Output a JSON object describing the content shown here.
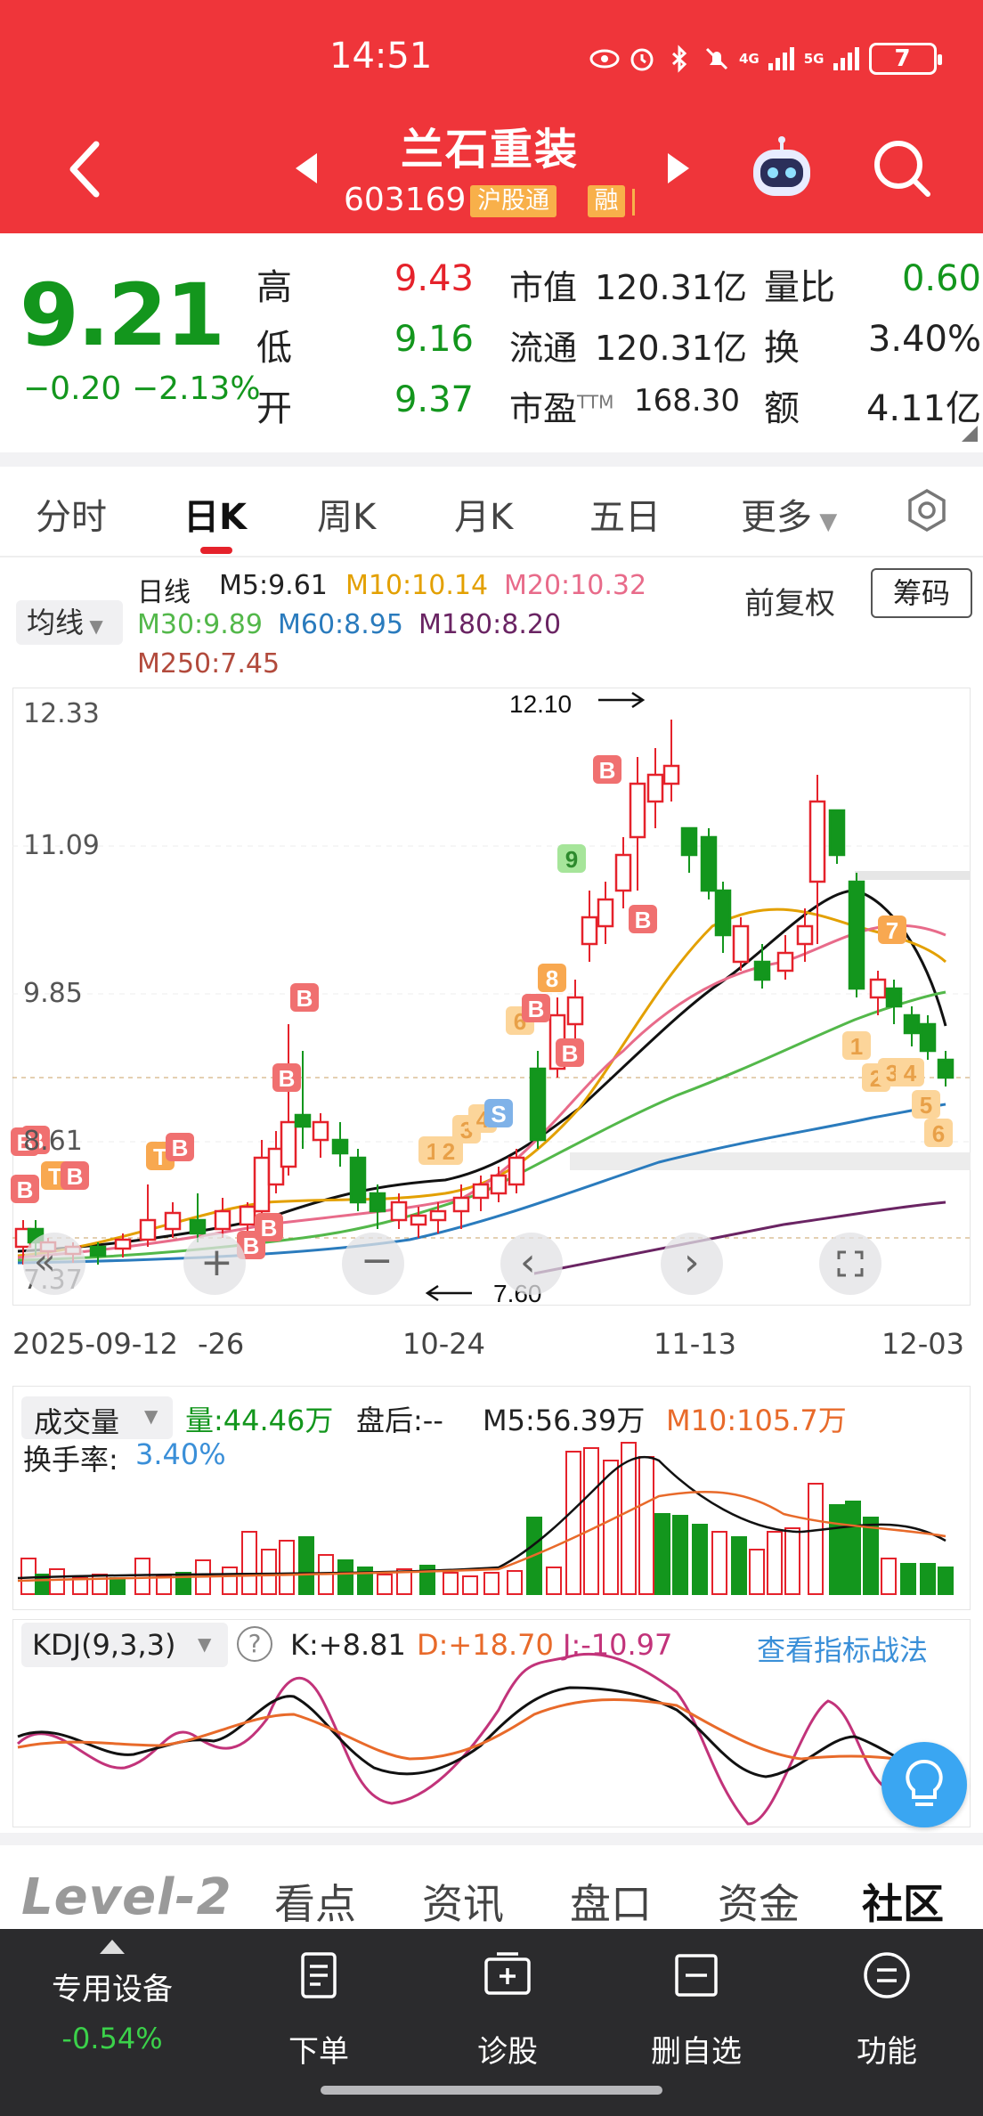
{
  "status_bar": {
    "time": "14:51",
    "signal_4g": "4G",
    "signal_5g": "5G",
    "battery": "7"
  },
  "header": {
    "name": "兰石重装",
    "code": "603169",
    "tag_hgt": "沪股通",
    "tag_rong": "融"
  },
  "quote": {
    "price": "9.21",
    "change": "−0.20",
    "change_pct": "−2.13%",
    "high_label": "高",
    "high": "9.43",
    "low_label": "低",
    "low": "9.16",
    "open_label": "开",
    "open": "9.37",
    "mcap_label": "市值",
    "mcap": "120.31亿",
    "float_label": "流通",
    "float": "120.31亿",
    "pe_label": "市盈",
    "pe_suffix": "TTM",
    "pe": "168.30",
    "vr_label": "量比",
    "vr": "0.60",
    "turnover_label": "换",
    "turnover": "3.40%",
    "amount_label": "额",
    "amount": "4.11亿"
  },
  "tabs": [
    "分时",
    "日K",
    "周K",
    "月K",
    "五日",
    "更多"
  ],
  "ma_legend": {
    "select": "均线",
    "kind": "日线",
    "m5": "M5:9.61",
    "m10": "M10:10.14",
    "m20": "M20:10.32",
    "m30": "M30:9.89",
    "m60": "M60:8.95",
    "m180": "M180:8.20",
    "m250": "M250:7.45",
    "qfq": "前复权",
    "chouma": "筹码"
  },
  "price_axis": [
    "12.33",
    "11.09",
    "9.85",
    "8.61",
    "7.37"
  ],
  "high_mark": "12.10",
  "low_mark": "7.60",
  "dates": [
    "2025-09-12",
    "-26",
    "10-24",
    "11-13",
    "12-03"
  ],
  "volume": {
    "select": "成交量",
    "vol": "量:44.46万",
    "after": "盘后:--",
    "m5": "M5:56.39万",
    "m10": "M10:105.7万",
    "turnover_label": "换手率:",
    "turnover": "3.40%"
  },
  "kdj": {
    "select": "KDJ(9,3,3)",
    "help": "?",
    "k": "K:+8.81",
    "d": "D:+18.70",
    "j": "J:-10.97",
    "link": "查看指标战法"
  },
  "modules": {
    "level2": "Level-2",
    "items": [
      "看点",
      "资讯",
      "盘口",
      "资金",
      "社区"
    ]
  },
  "toolbar": {
    "device_label": "专用设备",
    "device_pct": "-0.54%",
    "items": [
      "下单",
      "诊股",
      "删自选",
      "功能"
    ]
  },
  "colors": {
    "header_red": "#ef353a",
    "up_red": "#e5222b",
    "down_green": "#13961d"
  }
}
